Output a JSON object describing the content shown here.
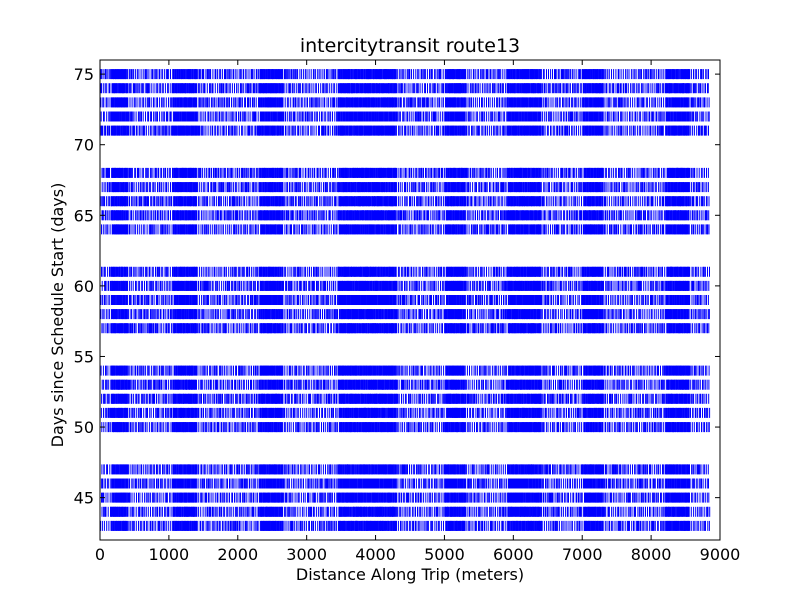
{
  "chart_data": {
    "type": "scatter",
    "title": "intercitytransit route13",
    "xlabel": "Distance Along Trip (meters)",
    "ylabel": "Days since Schedule Start (days)",
    "xlim": [
      0,
      9000
    ],
    "ylim": [
      42,
      76
    ],
    "xticks": [
      0,
      1000,
      2000,
      3000,
      4000,
      5000,
      6000,
      7000,
      8000,
      9000
    ],
    "yticks": [
      45,
      50,
      55,
      60,
      65,
      70,
      75
    ],
    "grid": false,
    "legend": "none",
    "marker": "|",
    "color": "#0000ff",
    "days": [
      43,
      44,
      45,
      46,
      47,
      50,
      51,
      52,
      53,
      54,
      57,
      58,
      59,
      60,
      61,
      64,
      65,
      66,
      67,
      68,
      71,
      72,
      73,
      74,
      75
    ],
    "x_range_per_day": [
      0,
      8850
    ],
    "dense_bands": [
      [
        150,
        400
      ],
      [
        1050,
        1400
      ],
      [
        2300,
        2650
      ],
      [
        3450,
        4300
      ],
      [
        5000,
        5300
      ],
      [
        5900,
        6400
      ],
      [
        7000,
        7300
      ],
      [
        8200,
        8550
      ]
    ],
    "x_ticks_text": [
      "0",
      "1000",
      "2000",
      "3000",
      "4000",
      "5000",
      "6000",
      "7000",
      "8000",
      "9000"
    ],
    "y_ticks_text": [
      "45",
      "50",
      "55",
      "60",
      "65",
      "70",
      "75"
    ]
  }
}
